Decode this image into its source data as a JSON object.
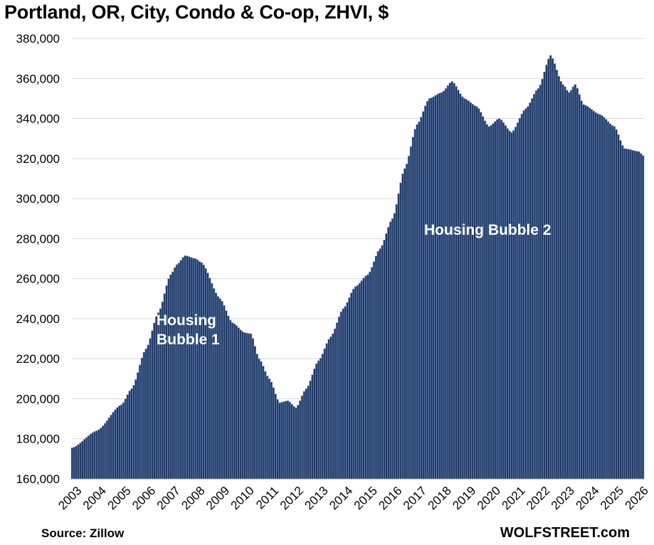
{
  "chart_data": {
    "type": "bar",
    "title": "Portland, OR, City, Condo & Co-op, ZHVI, $",
    "ylim": [
      160000,
      380000
    ],
    "y_ticks": [
      "160,000",
      "180,000",
      "200,000",
      "220,000",
      "240,000",
      "260,000",
      "280,000",
      "300,000",
      "320,000",
      "340,000",
      "360,000",
      "380,000"
    ],
    "x_ticks": [
      "2003",
      "2004",
      "2005",
      "2006",
      "2007",
      "2008",
      "2009",
      "2010",
      "2011",
      "2012",
      "2013",
      "2014",
      "2015",
      "2016",
      "2017",
      "2018",
      "2019",
      "2020",
      "2021",
      "2022",
      "2023",
      "2024",
      "2025",
      "2026"
    ],
    "start": "2003-01",
    "frequency": "monthly",
    "anchors": [
      [
        "2003-01",
        175500
      ],
      [
        "2004-01",
        184000
      ],
      [
        "2005-01",
        197000
      ],
      [
        "2005-06",
        205000
      ],
      [
        "2006-01",
        225000
      ],
      [
        "2006-07",
        243000
      ],
      [
        "2007-01",
        262000
      ],
      [
        "2007-04",
        267000
      ],
      [
        "2007-08",
        271500
      ],
      [
        "2008-01",
        270000
      ],
      [
        "2008-04",
        268000
      ],
      [
        "2009-01",
        250000
      ],
      [
        "2009-07",
        238000
      ],
      [
        "2010-01",
        233000
      ],
      [
        "2010-04",
        232500
      ],
      [
        "2010-08",
        220000
      ],
      [
        "2011-01",
        210000
      ],
      [
        "2011-06",
        198000
      ],
      [
        "2011-10",
        199000
      ],
      [
        "2012-02",
        195500
      ],
      [
        "2012-07",
        205000
      ],
      [
        "2013-01",
        219000
      ],
      [
        "2013-07",
        231000
      ],
      [
        "2014-01",
        245000
      ],
      [
        "2014-07",
        256000
      ],
      [
        "2015-01",
        262000
      ],
      [
        "2015-07",
        275000
      ],
      [
        "2016-01",
        290000
      ],
      [
        "2016-07",
        315000
      ],
      [
        "2017-01",
        337000
      ],
      [
        "2017-07",
        350000
      ],
      [
        "2018-01",
        353000
      ],
      [
        "2018-06",
        358500
      ],
      [
        "2018-12",
        350000
      ],
      [
        "2019-06",
        346000
      ],
      [
        "2019-12",
        336000
      ],
      [
        "2020-05",
        340000
      ],
      [
        "2020-11",
        333000
      ],
      [
        "2021-06",
        345000
      ],
      [
        "2021-12",
        355000
      ],
      [
        "2022-06",
        371500
      ],
      [
        "2022-12",
        357000
      ],
      [
        "2023-03",
        353000
      ],
      [
        "2023-06",
        357000
      ],
      [
        "2023-10",
        347000
      ],
      [
        "2024-06",
        342000
      ],
      [
        "2025-01",
        336000
      ],
      [
        "2025-06",
        325000
      ],
      [
        "2026-01",
        323500
      ],
      [
        "2026-03",
        321500
      ]
    ],
    "annotations": [
      {
        "text_lines": [
          "Housing",
          "Bubble 1"
        ]
      },
      {
        "text_lines": [
          "Housing Bubble 2"
        ]
      }
    ],
    "bar_color": "#1f3864",
    "bar_edge_color": "#7f9cc8"
  },
  "footer": {
    "source": "Source: Zillow",
    "brand": "WOLFSTREET.com"
  }
}
